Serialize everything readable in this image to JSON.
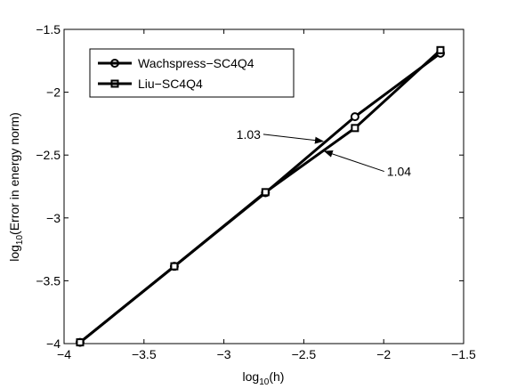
{
  "chart_data": {
    "type": "line",
    "title": "",
    "xlabel": {
      "base": "log",
      "sub": "10",
      "rest": "(h)"
    },
    "ylabel": {
      "base": "log",
      "sub": "10",
      "rest": "(Error in energy norm)"
    },
    "xlim": [
      -4,
      -1.5
    ],
    "ylim": [
      -4,
      -1.5
    ],
    "x_ticks": [
      -4,
      -3.5,
      -3,
      -2.5,
      -2,
      -1.5
    ],
    "y_ticks": [
      -4,
      -3.5,
      -3,
      -2.5,
      -2,
      -1.5
    ],
    "x_tick_labels": [
      "−4",
      "−3.5",
      "−3",
      "−2.5",
      "−2",
      "−1.5"
    ],
    "y_tick_labels": [
      "−4",
      "−3.5",
      "−3",
      "−2.5",
      "−2",
      "−1.5"
    ],
    "grid": false,
    "legend_position": "top-left",
    "series": [
      {
        "name": "Wachspress−SC4Q4",
        "marker": "circle",
        "color": "#000000",
        "x": [
          -3.9,
          -3.31,
          -2.74,
          -2.18,
          -1.645
        ],
        "y": [
          -3.99,
          -3.385,
          -2.8,
          -2.195,
          -1.69
        ]
      },
      {
        "name": "Liu−SC4Q4",
        "marker": "square",
        "color": "#000000",
        "x": [
          -3.9,
          -3.31,
          -2.74,
          -2.18,
          -1.645
        ],
        "y": [
          -3.99,
          -3.385,
          -2.795,
          -2.285,
          -1.665
        ]
      }
    ],
    "annotations": [
      {
        "text": "1.03",
        "text_at": [
          -2.77,
          -2.335
        ],
        "arrow_to": [
          -2.38,
          -2.39
        ]
      },
      {
        "text": "1.04",
        "text_at": [
          -1.98,
          -2.63
        ],
        "arrow_to": [
          -2.37,
          -2.47
        ]
      }
    ]
  }
}
